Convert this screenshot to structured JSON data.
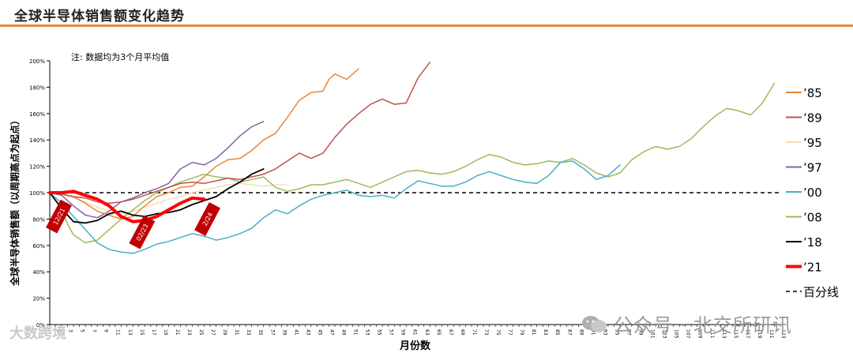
{
  "header": {
    "title": "全球半导体销售额变化趋势",
    "accent_color": "#e8863a"
  },
  "watermarks": {
    "left_text": "大数跨境",
    "right_text": "公众号 · 北交所研讯"
  },
  "chart_data": {
    "type": "line",
    "note": "注: 数据均为3个月平均值",
    "xlabel": "月份数",
    "ylabel": "全球半导体销售额（以周期高点为起点）",
    "x_range": [
      0,
      123
    ],
    "ylim": [
      0,
      200
    ],
    "y_ticks": [
      0,
      20,
      40,
      60,
      80,
      100,
      120,
      140,
      160,
      180,
      200
    ],
    "y_tick_labels": [
      "0%",
      "20%",
      "40%",
      "60%",
      "80%",
      "100%",
      "120%",
      "140%",
      "160%",
      "180%",
      "200%"
    ],
    "grid": false,
    "legend_position": "right",
    "reference_line": {
      "y": 100,
      "label": "百分线",
      "style": "dashed",
      "color": "#000000"
    },
    "series": [
      {
        "name": "’85",
        "color": "#e8863a",
        "width": 1.5,
        "x": [
          0,
          2,
          4,
          6,
          8,
          10,
          12,
          14,
          16,
          18,
          20,
          22,
          24,
          26,
          28,
          30,
          32,
          34,
          36,
          38,
          40,
          42,
          44,
          46,
          47,
          48,
          50,
          52
        ],
        "y": [
          100,
          99,
          97,
          92,
          86,
          83,
          80,
          82,
          90,
          97,
          100,
          104,
          105,
          112,
          120,
          125,
          126,
          132,
          140,
          145,
          157,
          170,
          176,
          177,
          186,
          190,
          186,
          194
        ]
      },
      {
        "name": "’89",
        "color": "#c0504d",
        "width": 1.5,
        "x": [
          0,
          2,
          4,
          6,
          8,
          10,
          12,
          14,
          16,
          18,
          20,
          22,
          24,
          26,
          28,
          30,
          32,
          34,
          36,
          38,
          40,
          42,
          44,
          46,
          48,
          50,
          52,
          54,
          56,
          58,
          60,
          62,
          64
        ],
        "y": [
          100,
          99,
          97,
          96,
          93,
          92,
          93,
          95,
          98,
          101,
          104,
          107,
          108,
          107,
          109,
          111,
          110,
          112,
          114,
          118,
          124,
          130,
          126,
          130,
          142,
          152,
          160,
          167,
          171,
          167,
          168,
          187,
          199
        ]
      },
      {
        "name": "’95",
        "color": "#f5deb3",
        "width": 1.5,
        "x": [
          0,
          2,
          4,
          6,
          8,
          10,
          12,
          14,
          16,
          18,
          20,
          22,
          24,
          26,
          28,
          30,
          32,
          34,
          36,
          38,
          40
        ],
        "y": [
          100,
          99,
          96,
          93,
          89,
          86,
          84,
          86,
          89,
          92,
          95,
          97,
          100,
          102,
          104,
          106,
          107,
          106,
          105,
          106,
          106
        ]
      },
      {
        "name": "’97",
        "color": "#8064a2",
        "width": 1.5,
        "x": [
          0,
          2,
          4,
          6,
          8,
          10,
          12,
          14,
          16,
          18,
          20,
          22,
          24,
          26,
          28,
          30,
          32,
          34,
          36
        ],
        "y": [
          100,
          98,
          90,
          83,
          81,
          86,
          93,
          96,
          100,
          103,
          107,
          118,
          123,
          121,
          126,
          134,
          143,
          150,
          154
        ]
      },
      {
        "name": "’00",
        "color": "#4bacc6",
        "width": 1.5,
        "x": [
          0,
          2,
          4,
          6,
          8,
          10,
          12,
          14,
          16,
          18,
          20,
          22,
          24,
          26,
          28,
          30,
          32,
          34,
          36,
          38,
          40,
          42,
          44,
          46,
          48,
          50,
          52,
          54,
          56,
          58,
          60,
          62,
          64,
          66,
          68,
          70,
          72,
          74,
          76,
          78,
          80,
          82,
          84,
          86,
          88,
          90,
          92,
          94,
          96
        ],
        "y": [
          100,
          92,
          82,
          72,
          62,
          57,
          55,
          54,
          57,
          61,
          63,
          66,
          69,
          67,
          64,
          66,
          69,
          73,
          81,
          87,
          84,
          90,
          95,
          98,
          100,
          102,
          98,
          97,
          98,
          96,
          103,
          109,
          107,
          105,
          105,
          108,
          113,
          116,
          113,
          110,
          108,
          107,
          113,
          123,
          124,
          118,
          110,
          113,
          121
        ]
      },
      {
        "name": "’08",
        "color": "#9bbb59",
        "width": 1.5,
        "x": [
          0,
          2,
          3,
          4,
          6,
          8,
          10,
          12,
          14,
          16,
          18,
          20,
          22,
          24,
          26,
          28,
          30,
          32,
          34,
          36,
          38,
          40,
          42,
          44,
          46,
          48,
          50,
          52,
          54,
          56,
          58,
          60,
          62,
          64,
          66,
          68,
          70,
          72,
          74,
          76,
          78,
          80,
          82,
          84,
          86,
          88,
          90,
          92,
          94,
          96,
          98,
          100,
          102,
          104,
          106,
          108,
          110,
          112,
          114,
          116,
          118,
          120,
          122
        ],
        "y": [
          100,
          88,
          76,
          68,
          62,
          64,
          72,
          80,
          87,
          94,
          100,
          104,
          108,
          111,
          114,
          112,
          111,
          108,
          110,
          112,
          104,
          101,
          103,
          106,
          106,
          108,
          110,
          107,
          104,
          108,
          112,
          116,
          117,
          115,
          114,
          116,
          120,
          125,
          129,
          127,
          123,
          121,
          122,
          124,
          123,
          126,
          121,
          115,
          112,
          115,
          125,
          131,
          135,
          133,
          135,
          141,
          150,
          158,
          164,
          162,
          159,
          168,
          183
        ]
      },
      {
        "name": "’18",
        "color": "#000000",
        "width": 1.8,
        "x": [
          0,
          2,
          4,
          6,
          8,
          10,
          12,
          14,
          16,
          18,
          20,
          22,
          24,
          26,
          28,
          30,
          32,
          34,
          36
        ],
        "y": [
          100,
          88,
          78,
          77,
          79,
          84,
          86,
          83,
          82,
          84,
          85,
          87,
          91,
          94,
          97,
          103,
          108,
          114,
          118
        ]
      },
      {
        "name": "’21",
        "color": "#ff0000",
        "width": 4,
        "x": [
          0,
          2,
          4,
          6,
          8,
          10,
          12,
          14,
          16,
          18,
          20,
          22,
          24,
          26
        ],
        "y": [
          100,
          100,
          101,
          98,
          95,
          90,
          82,
          78,
          79,
          82,
          87,
          92,
          96,
          95
        ]
      }
    ],
    "annotations": [
      {
        "label": "12/21",
        "x": 1,
        "y": 82
      },
      {
        "label": "02/23",
        "x": 15,
        "y": 70
      },
      {
        "label": "2/24",
        "x": 26,
        "y": 80
      }
    ]
  }
}
